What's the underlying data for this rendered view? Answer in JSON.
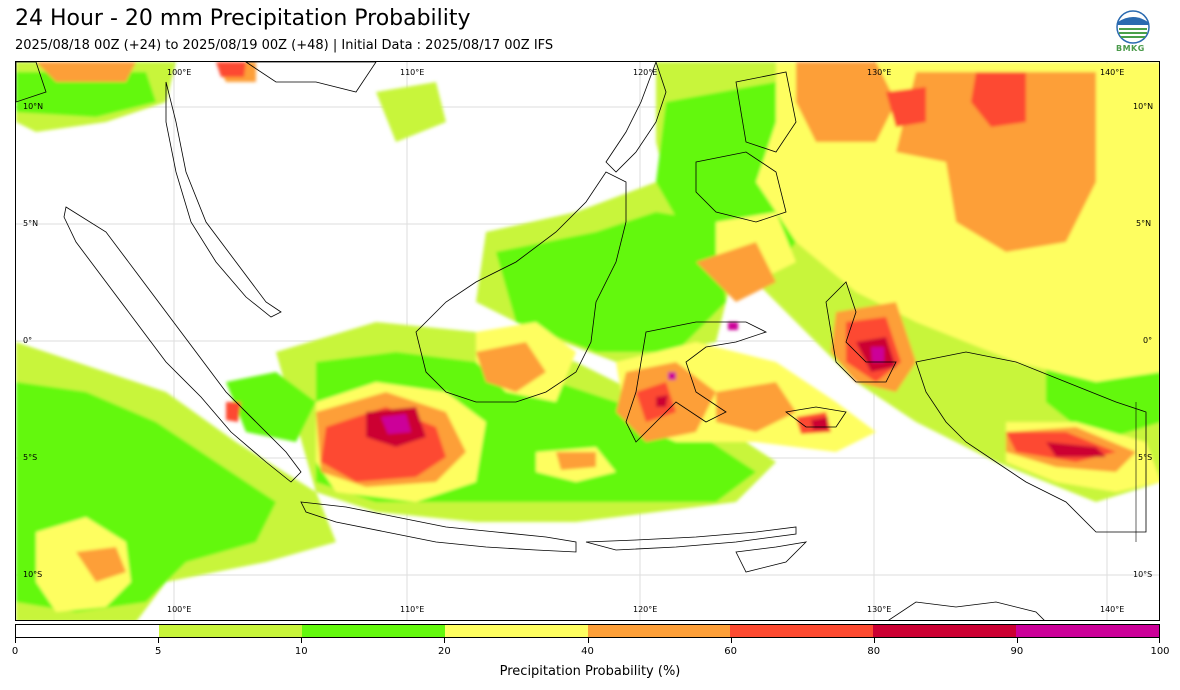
{
  "title": "24 Hour - 20 mm Precipitation Probability",
  "subtitle": "2025/08/18 00Z (+24) to 2025/08/19 00Z (+48) | Initial Data : 2025/08/17 00Z IFS",
  "logo_text": "BMKG",
  "map": {
    "lon_labels": [
      "100°E",
      "110°E",
      "120°E",
      "130°E",
      "140°E"
    ],
    "lat_labels_left": [
      "10°N",
      "5°N",
      "0°",
      "5°S",
      "10°S"
    ],
    "lat_labels_right": [
      "10°N",
      "5°N",
      "0°",
      "5°S",
      "10°S"
    ]
  },
  "colorbar": {
    "title": "Precipitation Probability (%)",
    "ticks": [
      "0",
      "5",
      "10",
      "20",
      "40",
      "60",
      "80",
      "90",
      "100"
    ],
    "colors": [
      "#ffffff",
      "#c8f53a",
      "#63f80d",
      "#fefe60",
      "#fd9f38",
      "#fd4a30",
      "#cc0033",
      "#cc0099"
    ]
  }
}
